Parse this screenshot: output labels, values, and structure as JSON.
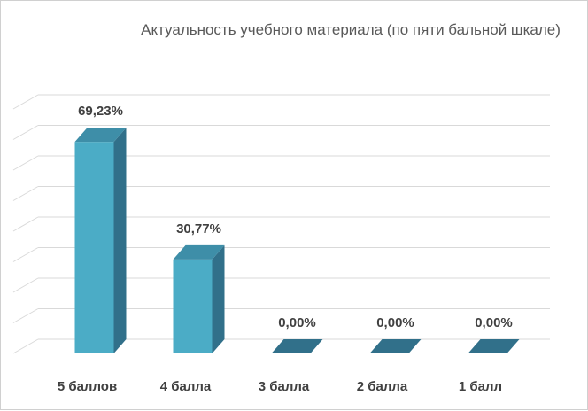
{
  "chart_data": {
    "type": "bar",
    "title": "Актуальность учебного материала (по пяти бальной шкале)",
    "categories": [
      "5 баллов",
      "4 балла",
      "3  балла",
      "2 балла",
      "1 балл"
    ],
    "values": [
      69.23,
      30.77,
      0.0,
      0.0,
      0.0
    ],
    "data_labels": [
      "69,23%",
      "30,77%",
      "0,00%",
      "0,00%",
      "0,00%"
    ],
    "ylim": [
      0,
      80
    ],
    "grid": true,
    "legend": "none",
    "colors": {
      "bar_front": "#4bacc6",
      "bar_side": "#31708a",
      "bar_top": "#3e8ea8",
      "grid": "#d9d9d9"
    }
  }
}
